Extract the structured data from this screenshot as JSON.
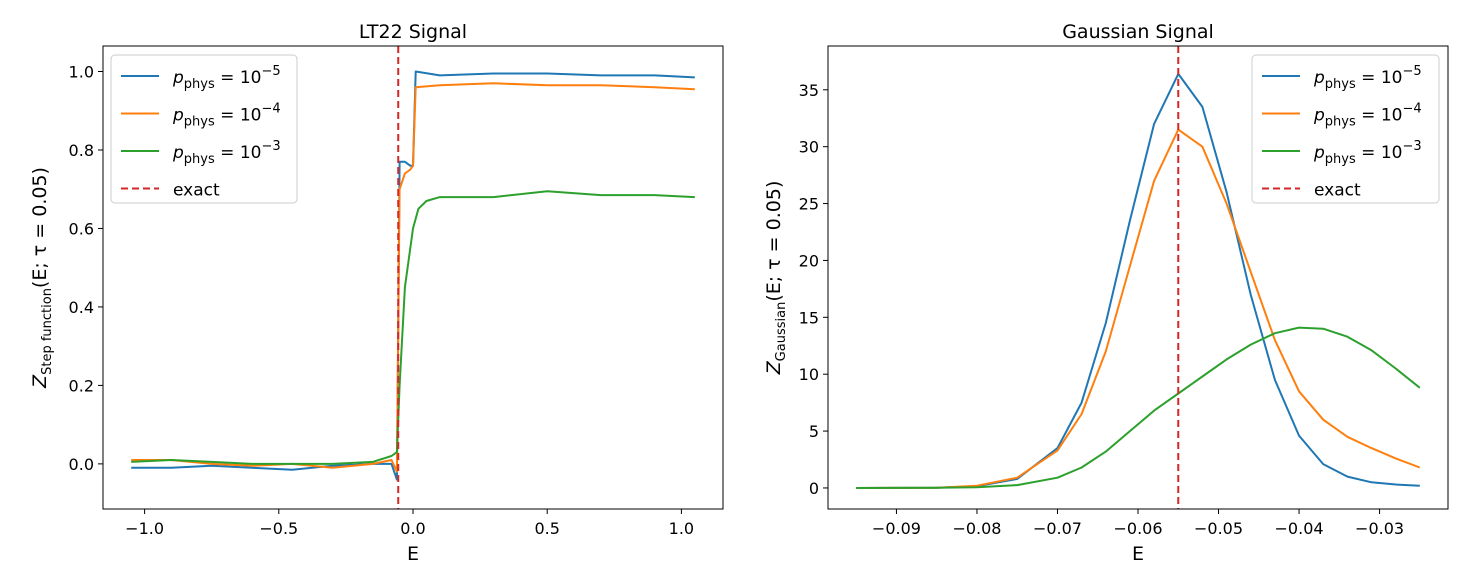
{
  "chart_data": [
    {
      "type": "line",
      "title": "LT22 Signal",
      "xlabel": "E",
      "ylabel": "Z_Step function(E; τ = 0.05)",
      "xlim": [
        -1.155,
        1.155
      ],
      "ylim": [
        -0.115,
        1.065
      ],
      "xticks": [
        -1.0,
        -0.5,
        0.0,
        0.5,
        1.0
      ],
      "yticks": [
        0.0,
        0.2,
        0.4,
        0.6,
        0.8,
        1.0
      ],
      "grid": false,
      "legend_position": "upper-left",
      "exact_marker": -0.055,
      "exact_label": "exact",
      "series": [
        {
          "name": "p_phys = 10^-5",
          "color": "#1f77b4",
          "x": [
            -1.05,
            -0.9,
            -0.75,
            -0.6,
            -0.45,
            -0.3,
            -0.15,
            -0.08,
            -0.06,
            -0.05,
            -0.03,
            -0.01,
            0.0,
            0.01,
            0.1,
            0.3,
            0.5,
            0.7,
            0.9,
            1.05
          ],
          "y": [
            -0.01,
            -0.01,
            -0.005,
            -0.01,
            -0.015,
            -0.005,
            0.0,
            0.0,
            -0.04,
            0.77,
            0.77,
            0.76,
            0.76,
            1.0,
            0.99,
            0.995,
            0.995,
            0.99,
            0.99,
            0.985
          ]
        },
        {
          "name": "p_phys = 10^-4",
          "color": "#ff7f0e",
          "x": [
            -1.05,
            -0.9,
            -0.75,
            -0.6,
            -0.45,
            -0.3,
            -0.15,
            -0.08,
            -0.06,
            -0.05,
            -0.03,
            -0.01,
            0.0,
            0.01,
            0.1,
            0.3,
            0.5,
            0.7,
            0.9,
            1.05
          ],
          "y": [
            0.01,
            0.01,
            0.0,
            -0.005,
            0.0,
            -0.01,
            0.0,
            0.01,
            -0.02,
            0.7,
            0.74,
            0.75,
            0.76,
            0.96,
            0.965,
            0.97,
            0.965,
            0.965,
            0.96,
            0.955
          ]
        },
        {
          "name": "p_phys = 10^-3",
          "color": "#2ca02c",
          "x": [
            -1.05,
            -0.9,
            -0.75,
            -0.6,
            -0.45,
            -0.3,
            -0.15,
            -0.08,
            -0.06,
            -0.05,
            -0.03,
            -0.01,
            0.0,
            0.02,
            0.05,
            0.1,
            0.3,
            0.5,
            0.7,
            0.9,
            1.05
          ],
          "y": [
            0.005,
            0.01,
            0.005,
            0.0,
            0.0,
            0.0,
            0.005,
            0.02,
            0.03,
            0.2,
            0.45,
            0.55,
            0.6,
            0.65,
            0.67,
            0.68,
            0.68,
            0.695,
            0.685,
            0.685,
            0.68
          ]
        }
      ]
    },
    {
      "type": "line",
      "title": "Gaussian Signal",
      "xlabel": "E",
      "ylabel": "Z_Gaussian(E; τ = 0.05)",
      "xlim": [
        -0.0985,
        -0.0215
      ],
      "ylim": [
        -1.85,
        38.85
      ],
      "xticks": [
        -0.09,
        -0.08,
        -0.07,
        -0.06,
        -0.05,
        -0.04,
        -0.03
      ],
      "yticks": [
        0,
        5,
        10,
        15,
        20,
        25,
        30,
        35
      ],
      "grid": false,
      "legend_position": "upper-right",
      "exact_marker": -0.055,
      "exact_label": "exact",
      "series": [
        {
          "name": "p_phys = 10^-5",
          "color": "#1f77b4",
          "x": [
            -0.095,
            -0.085,
            -0.08,
            -0.075,
            -0.07,
            -0.067,
            -0.064,
            -0.061,
            -0.058,
            -0.055,
            -0.052,
            -0.049,
            -0.046,
            -0.043,
            -0.04,
            -0.037,
            -0.034,
            -0.031,
            -0.028,
            -0.025
          ],
          "y": [
            0.0,
            0.02,
            0.15,
            0.8,
            3.5,
            7.5,
            14.5,
            23.5,
            32.0,
            36.4,
            33.5,
            26.0,
            17.0,
            9.5,
            4.6,
            2.1,
            1.0,
            0.5,
            0.3,
            0.2
          ]
        },
        {
          "name": "p_phys = 10^-4",
          "color": "#ff7f0e",
          "x": [
            -0.095,
            -0.085,
            -0.08,
            -0.075,
            -0.07,
            -0.067,
            -0.064,
            -0.061,
            -0.058,
            -0.055,
            -0.052,
            -0.049,
            -0.046,
            -0.043,
            -0.04,
            -0.037,
            -0.034,
            -0.031,
            -0.028,
            -0.025
          ],
          "y": [
            0.0,
            0.02,
            0.2,
            0.9,
            3.3,
            6.5,
            12.0,
            19.5,
            27.0,
            31.5,
            30.0,
            25.0,
            19.0,
            13.0,
            8.5,
            6.0,
            4.5,
            3.5,
            2.6,
            1.8
          ]
        },
        {
          "name": "p_phys = 10^-3",
          "color": "#2ca02c",
          "x": [
            -0.095,
            -0.085,
            -0.08,
            -0.075,
            -0.07,
            -0.067,
            -0.064,
            -0.061,
            -0.058,
            -0.055,
            -0.052,
            -0.049,
            -0.046,
            -0.043,
            -0.04,
            -0.037,
            -0.034,
            -0.031,
            -0.028,
            -0.025
          ],
          "y": [
            0.0,
            0.02,
            0.07,
            0.25,
            0.9,
            1.8,
            3.2,
            5.0,
            6.8,
            8.3,
            9.8,
            11.3,
            12.6,
            13.6,
            14.1,
            14.0,
            13.3,
            12.1,
            10.5,
            8.8
          ]
        }
      ]
    }
  ]
}
